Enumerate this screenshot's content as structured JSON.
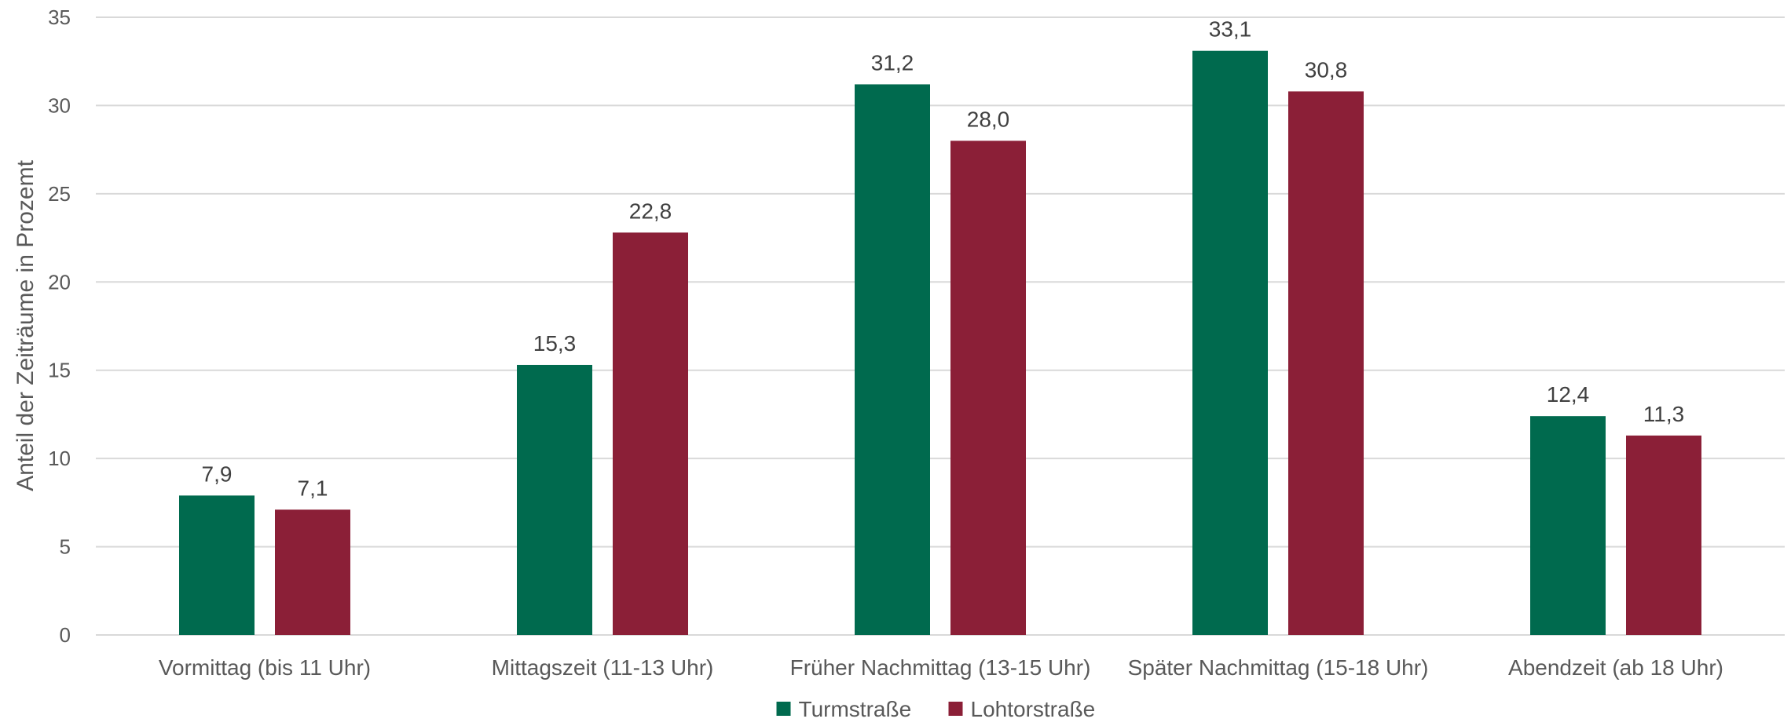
{
  "chart_data": {
    "type": "bar",
    "title": "",
    "xlabel": "",
    "ylabel": "Anteil der Zeiträume in Prozemt",
    "ylim": [
      0,
      35
    ],
    "yticks": [
      0,
      5,
      10,
      15,
      20,
      25,
      30,
      35
    ],
    "grid": true,
    "legend_position": "bottom",
    "categories": [
      "Vormittag (bis 11 Uhr)",
      "Mittagszeit (11-13 Uhr)",
      "Früher Nachmittag (13-15 Uhr)",
      "Später Nachmittag (15-18 Uhr)",
      "Abendzeit (ab 18 Uhr)"
    ],
    "series": [
      {
        "name": "Turmstraße",
        "color": "#006a4e",
        "values": [
          7.9,
          15.3,
          31.2,
          33.1,
          12.4
        ],
        "labels": [
          "7,9",
          "15,3",
          "31,2",
          "33,1",
          "12,4"
        ]
      },
      {
        "name": "Lohtorstraße",
        "color": "#8b1f37",
        "values": [
          7.1,
          22.8,
          28.0,
          30.8,
          11.3
        ],
        "labels": [
          "7,1",
          "22,8",
          "28,0",
          "30,8",
          "11,3"
        ]
      }
    ]
  }
}
